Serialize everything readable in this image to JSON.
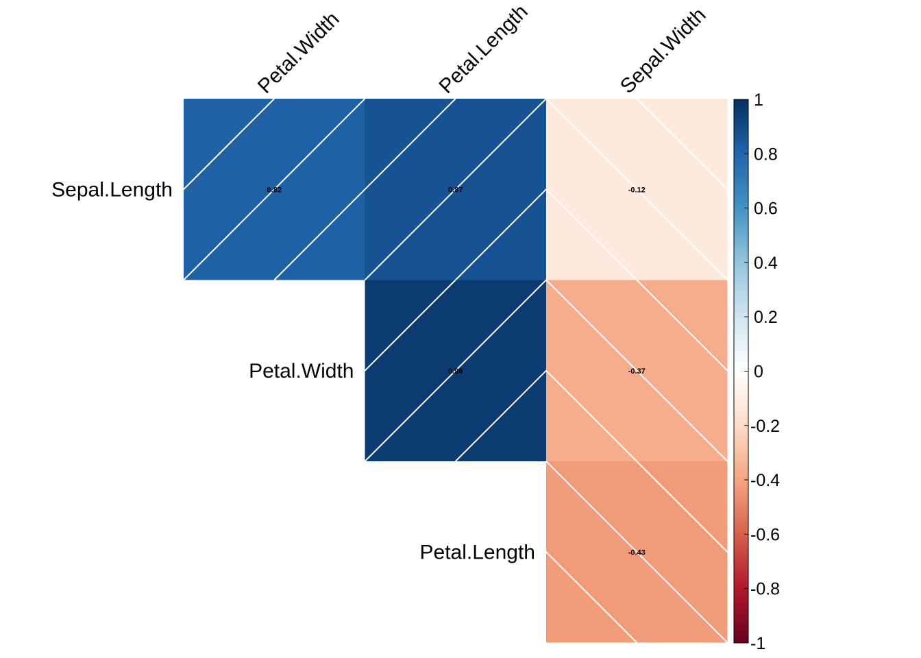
{
  "chart_data": {
    "type": "heatmap",
    "title": "",
    "columns": [
      "Petal.Width",
      "Petal.Length",
      "Sepal.Width"
    ],
    "rows": [
      "Sepal.Length",
      "Petal.Width",
      "Petal.Length"
    ],
    "cells": [
      {
        "row": "Sepal.Length",
        "col": "Petal.Width",
        "value": 0.82,
        "label": "0.82"
      },
      {
        "row": "Sepal.Length",
        "col": "Petal.Length",
        "value": 0.87,
        "label": "0.87"
      },
      {
        "row": "Sepal.Length",
        "col": "Sepal.Width",
        "value": -0.12,
        "label": "-0.12"
      },
      {
        "row": "Petal.Width",
        "col": "Petal.Length",
        "value": 0.96,
        "label": "0.96"
      },
      {
        "row": "Petal.Width",
        "col": "Sepal.Width",
        "value": -0.37,
        "label": "-0.37"
      },
      {
        "row": "Petal.Length",
        "col": "Sepal.Width",
        "value": -0.43,
        "label": "-0.43"
      }
    ],
    "shade_pattern": "diagonal lines: positive values slope up, negative values slope down",
    "colorbar": {
      "range": [
        -1,
        1
      ],
      "ticks": [
        "1",
        "0.8",
        "0.6",
        "0.4",
        "0.2",
        "0",
        "-0.2",
        "-0.4",
        "-0.6",
        "-0.8",
        "-1"
      ],
      "tick_values": [
        1,
        0.8,
        0.6,
        0.4,
        0.2,
        0,
        -0.2,
        -0.4,
        -0.6,
        -0.8,
        -1
      ],
      "palette": [
        "#67001F",
        "#B2182B",
        "#D6604D",
        "#F4A582",
        "#FDDBC7",
        "#FFFFFF",
        "#D1E5F0",
        "#92C5DE",
        "#4393C3",
        "#2166AC",
        "#053061"
      ]
    }
  }
}
